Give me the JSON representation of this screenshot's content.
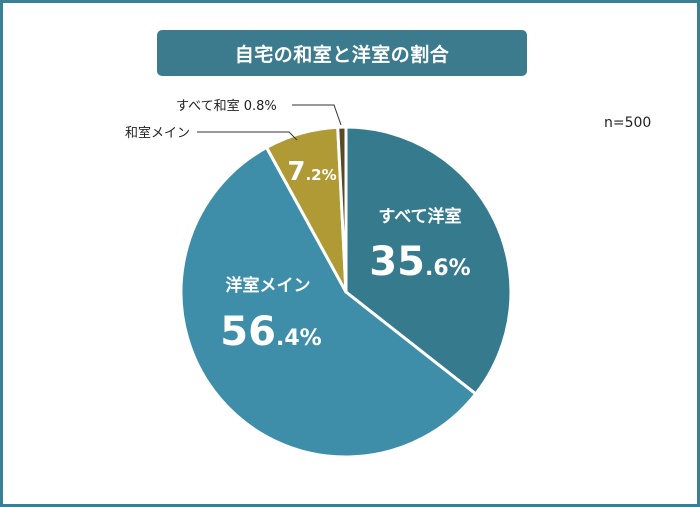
{
  "chart_data": {
    "type": "pie",
    "title": "自宅の和室と洋室の割合",
    "note": "n=500",
    "start_angle_deg": 0,
    "direction": "clockwise",
    "slices": [
      {
        "label": "すべて洋室",
        "value": 35.6,
        "int": "35",
        "dec": ".6%",
        "color": "#367a8d",
        "label_place": "inside"
      },
      {
        "label": "洋室メイン",
        "value": 56.4,
        "int": "56",
        "dec": ".4%",
        "color": "#3e8ea9",
        "label_place": "inside"
      },
      {
        "label": "和室メイン",
        "value": 7.2,
        "int": "7",
        "dec": ".2%",
        "color": "#b09a36",
        "label_place": "outside"
      },
      {
        "label": "すべて和室",
        "value": 0.8,
        "value_text": "0.8%",
        "color": "#5a4a23",
        "label_place": "outside"
      }
    ]
  }
}
